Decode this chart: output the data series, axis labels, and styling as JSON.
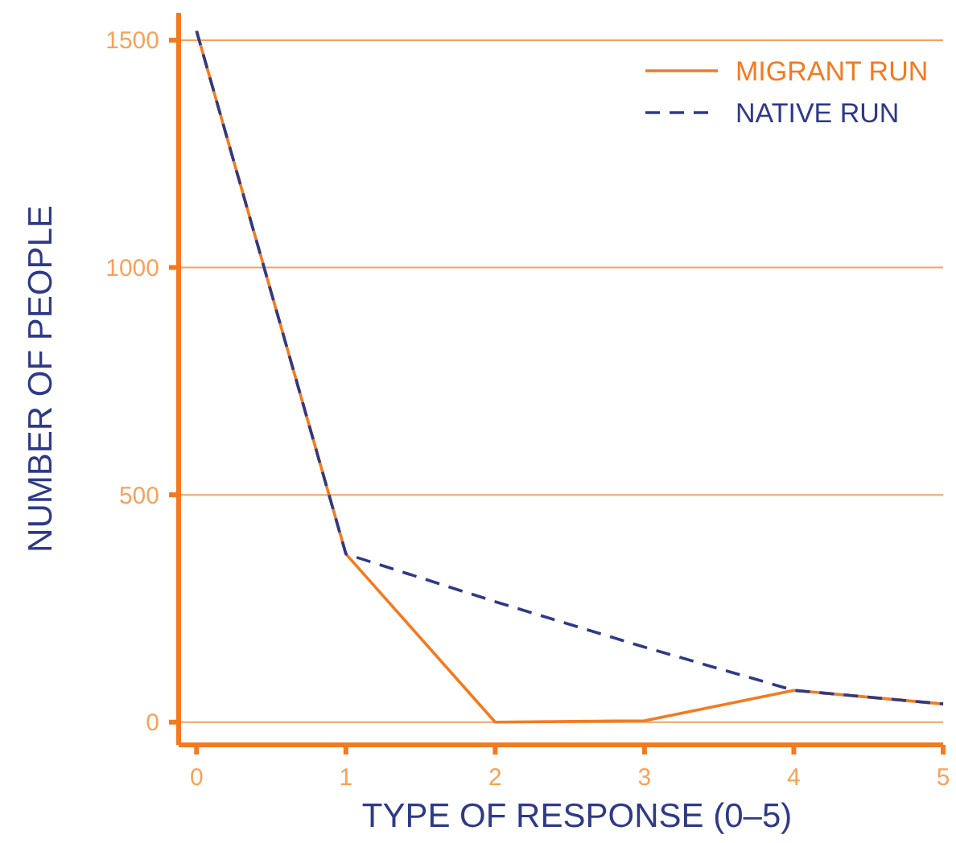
{
  "chart_data": {
    "type": "line",
    "xlabel": "TYPE OF RESPONSE (0–5)",
    "ylabel": "NUMBER OF PEOPLE",
    "x": [
      0,
      1,
      2,
      3,
      4,
      5
    ],
    "xlim": [
      -0.12,
      5
    ],
    "xticks": [
      0,
      1,
      2,
      3,
      4,
      5
    ],
    "ylim": [
      -50,
      1560
    ],
    "yticks": [
      0,
      500,
      1000,
      1500
    ],
    "grid": "y",
    "legend": "top right",
    "series": [
      {
        "name": "MIGRANT RUN",
        "color": "#f47a20",
        "line_style": "solid",
        "values": [
          1520,
          370,
          0,
          3,
          70,
          40
        ]
      },
      {
        "name": "NATIVE RUN",
        "color": "#2e3a87",
        "line_style": "dashed",
        "values": [
          1520,
          370,
          265,
          165,
          70,
          40
        ]
      }
    ]
  }
}
